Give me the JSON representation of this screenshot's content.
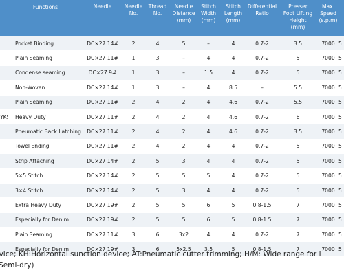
{
  "table": {
    "columns": [
      null,
      "Functions",
      "Needle",
      "Needle\nNo.",
      "Thread\nNo.",
      "Needle\nDistance\n(mm)",
      "Stitch\nWidth\n(mm)",
      "Stitch\nLength\n(mm)",
      "Differential\nRatio",
      "Presser\nFoot Lifting\nHeight\n(mm)",
      "Max.\nSpeed\n(s.p.m)",
      null
    ],
    "rows": [
      [
        null,
        "Pocket Binding",
        "DC×27 14#",
        2,
        4,
        5,
        "–",
        4,
        "0.7-2",
        3.5,
        7000,
        5
      ],
      [
        null,
        "Plain Seaming",
        "DC×27 11#",
        1,
        3,
        "–",
        4,
        4,
        "0.7-2",
        5,
        7000,
        5
      ],
      [
        null,
        "Condense seaming",
        "DC×27 9#",
        1,
        3,
        "–",
        1.5,
        4,
        "0.7-2",
        5,
        7000,
        5
      ],
      [
        null,
        "Non-Woven",
        "DC×27 14#",
        1,
        3,
        "–",
        4,
        8.5,
        "–",
        5.5,
        7000,
        5
      ],
      [
        null,
        "Plain Seaming",
        "DC×27 11#",
        2,
        4,
        2,
        4,
        4.6,
        "0.7-2",
        5.5,
        7000,
        5
      ],
      [
        "YKS",
        "Heavy Duty",
        "DC×27 11#",
        2,
        4,
        2,
        4,
        4.6,
        "0.7-2",
        6,
        7000,
        5
      ],
      [
        null,
        "Pneumatic Back Latching",
        "DC×27 11#",
        2,
        4,
        2,
        4,
        4.6,
        "0.7-2",
        3.5,
        7000,
        5
      ],
      [
        null,
        "Towel Ending",
        "DC×27 11#",
        2,
        4,
        2,
        4,
        4,
        "0.7-2",
        5,
        7000,
        5
      ],
      [
        null,
        "Strip Attaching",
        "DC×27 14#",
        2,
        5,
        3,
        4,
        4,
        "0.7-2",
        5,
        7000,
        5
      ],
      [
        null,
        "5×5 Stitch",
        "DC×27 14#",
        2,
        5,
        5,
        5,
        4,
        "0.7-2",
        5,
        7000,
        5
      ],
      [
        null,
        "3×4 Stitch",
        "DC×27 14#",
        2,
        5,
        3,
        4,
        4,
        "0.7-2",
        5,
        7000,
        5
      ],
      [
        null,
        "Extra Heavy Duty",
        "DC×27 19#",
        2,
        5,
        5,
        6,
        5,
        "0.8-1.5",
        7,
        7000,
        5
      ],
      [
        null,
        "Especially for Denim",
        "DC×27 19#",
        2,
        5,
        5,
        6,
        5,
        "0.8-1.5",
        7,
        7000,
        5
      ],
      [
        null,
        "Plain Seaming",
        "DC×27 11#",
        3,
        6,
        "3x2",
        4,
        4,
        "0.7-2",
        7,
        7000,
        5
      ],
      [
        null,
        "Especially for Denim",
        "DC×27 19#",
        3,
        6,
        "5x2.5",
        3.5,
        5,
        "0.8-1.5",
        7,
        7000,
        5
      ]
    ]
  },
  "footnote": {
    "lines": [
      "tion device; KH:Horizontal sunction device; AT:Pneumatic cutter trimming; H/M:  Wide range for l",
      "(Semi-dry)"
    ]
  }
}
